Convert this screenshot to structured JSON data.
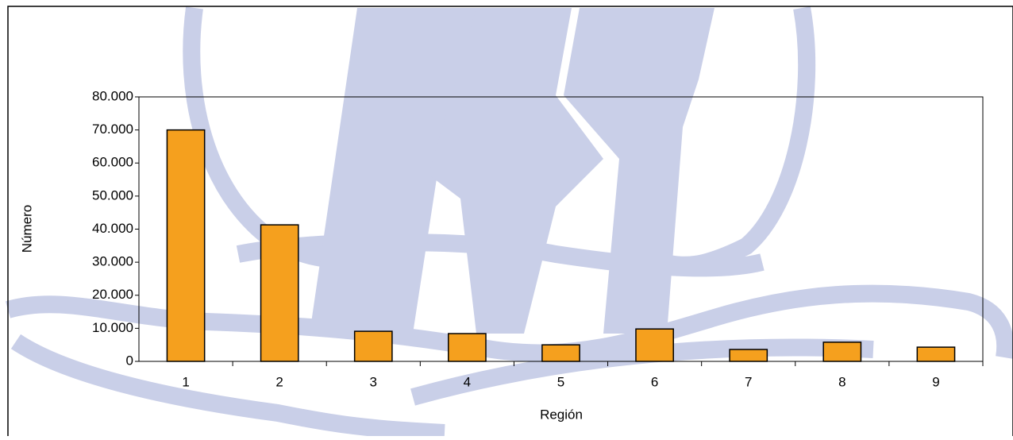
{
  "chart_data": {
    "type": "bar",
    "x_label": "Región",
    "y_label": "Número",
    "categories": [
      "1",
      "2",
      "3",
      "4",
      "5",
      "6",
      "7",
      "8",
      "9"
    ],
    "values": [
      70000,
      41300,
      9100,
      8400,
      5000,
      9800,
      3600,
      5800,
      4300
    ],
    "color": "#f5a01e",
    "ylim": [
      0,
      80000
    ],
    "yticks": [
      0,
      {
        "value": 10000,
        "label": "10.000"
      },
      {
        "value": 20000,
        "label": "20.000"
      },
      {
        "value": 30000,
        "label": "30.000"
      },
      {
        "value": 40000,
        "label": "40.000"
      },
      {
        "value": 50000,
        "label": "50.000"
      },
      {
        "value": 60000,
        "label": "60.000"
      },
      {
        "value": 70000,
        "label": "70.000"
      },
      {
        "value": 80000,
        "label": "80.000"
      }
    ]
  }
}
